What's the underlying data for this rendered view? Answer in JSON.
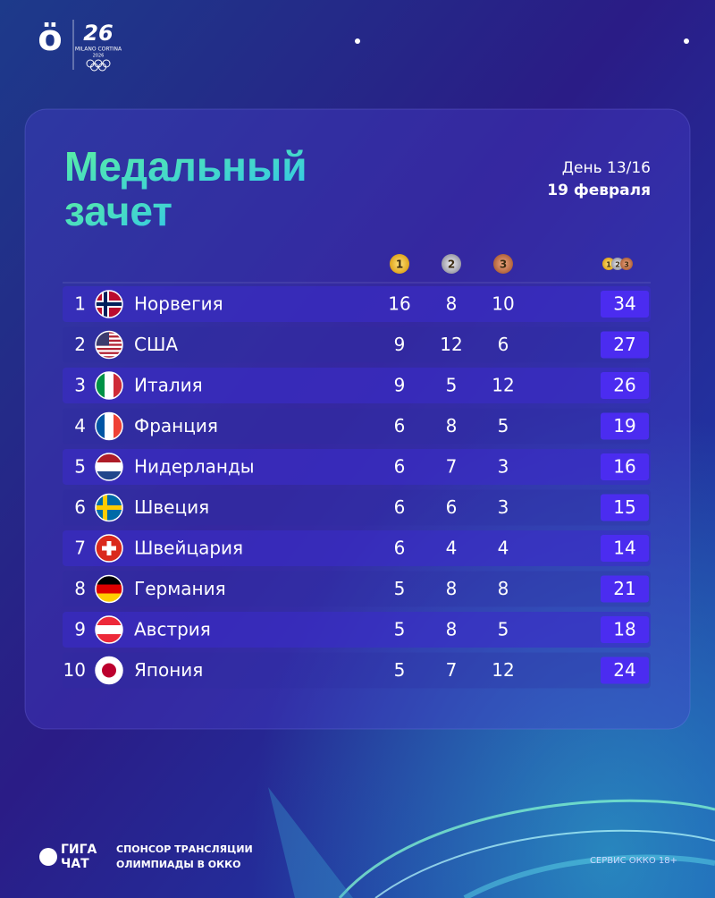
{
  "header": {
    "logo": "ö",
    "games_mark": "26",
    "games_name": "MILANO CORTINA",
    "games_year": "2026"
  },
  "title": [
    "Медальный",
    "зачет"
  ],
  "day": "День 13/16",
  "date": "19 февраля",
  "table": {
    "medal_icons": [
      "1",
      "2",
      "3"
    ],
    "rows": [
      [
        1,
        "Норвегия",
        16,
        8,
        10,
        34
      ],
      [
        2,
        "США",
        9,
        12,
        6,
        27
      ],
      [
        3,
        "Италия",
        9,
        5,
        12,
        26
      ],
      [
        4,
        "Франция",
        6,
        8,
        5,
        19
      ],
      [
        5,
        "Нидерланды",
        6,
        7,
        3,
        16
      ],
      [
        6,
        "Швеция",
        6,
        6,
        3,
        15
      ],
      [
        7,
        "Швейцария",
        6,
        4,
        4,
        14
      ],
      [
        8,
        "Германия",
        5,
        8,
        8,
        21
      ],
      [
        9,
        "Австрия",
        5,
        8,
        5,
        18
      ],
      [
        10,
        "Япония",
        5,
        7,
        12,
        24
      ]
    ]
  },
  "footer": {
    "brand": [
      "ГИГА",
      "ЧАТ"
    ],
    "sponsor": [
      "СПОНСОР ТРАНСЛЯЦИИ",
      "ОЛИМПИАДЫ В ОККО"
    ],
    "service": "СЕРВИС ОККО 18+"
  }
}
